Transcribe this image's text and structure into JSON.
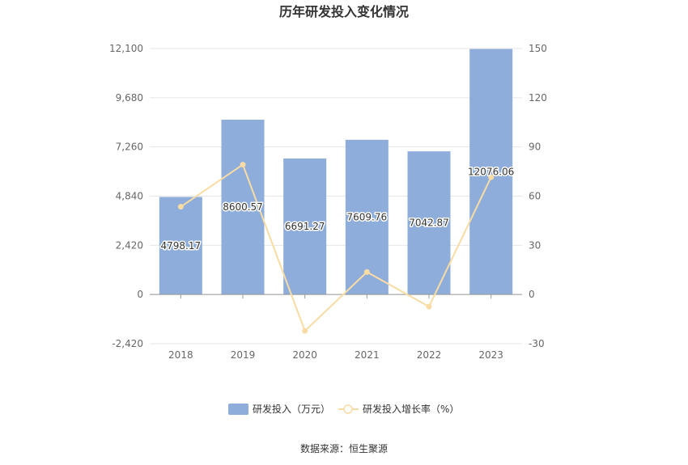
{
  "chart_data": {
    "type": "bar",
    "title": "历年研发投入变化情况",
    "categories": [
      "2018",
      "2019",
      "2020",
      "2021",
      "2022",
      "2023"
    ],
    "series": [
      {
        "name": "研发投入（万元）",
        "type": "bar",
        "axis": "left",
        "color": "#8eaddb",
        "values": [
          4798.17,
          8600.57,
          6691.27,
          7609.76,
          7042.87,
          12076.06
        ],
        "labels": [
          "4798.17",
          "8600.57",
          "6691.27",
          "7609.76",
          "7042.87",
          "12076.06"
        ]
      },
      {
        "name": "研发投入增长率（%）",
        "type": "line",
        "axis": "right",
        "color": "#f8dca4",
        "values": [
          53.5,
          79.2,
          -22.2,
          13.7,
          -7.4,
          71.5
        ]
      }
    ],
    "y_left": {
      "min": -2420,
      "max": 12100,
      "ticks": [
        -2420,
        0,
        2420,
        4840,
        7260,
        9680,
        12100
      ],
      "tick_labels": [
        "-2,420",
        "0",
        "2,420",
        "4,840",
        "7,260",
        "9,680",
        "12,100"
      ]
    },
    "y_right": {
      "min": -30,
      "max": 150,
      "ticks": [
        -30,
        0,
        30,
        60,
        90,
        120,
        150
      ],
      "tick_labels": [
        "-30",
        "0",
        "30",
        "60",
        "90",
        "120",
        "150"
      ]
    },
    "grid": true,
    "legend_position": "bottom",
    "source": "数据来源：恒生聚源"
  }
}
